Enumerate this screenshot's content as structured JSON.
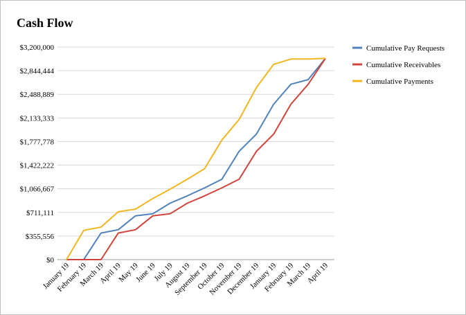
{
  "chart_data": {
    "type": "line",
    "title": "Cash Flow",
    "xlabel": "",
    "ylabel": "",
    "categories": [
      "January 19",
      "February 19",
      "March 19",
      "April 19",
      "May 19",
      "June 19",
      "July 19",
      "August 19",
      "September 19",
      "October 19",
      "November 19",
      "December 19",
      "January 19",
      "February 19",
      "March 19",
      "April 19"
    ],
    "y_ticks": [
      "$0",
      "$355,556",
      "$711,111",
      "$1,066,667",
      "$1,422,222",
      "$1,777,778",
      "$2,133,333",
      "$2,488,889",
      "$2,844,444",
      "$3,200,000"
    ],
    "ylim": [
      0,
      3200000
    ],
    "grid": true,
    "legend_position": "right",
    "series": [
      {
        "name": "Cumulative Pay Requests",
        "color": "#4f81bd",
        "values": [
          0,
          0,
          400000,
          450000,
          660000,
          690000,
          850000,
          960000,
          1080000,
          1210000,
          1630000,
          1890000,
          2340000,
          2640000,
          2710000,
          3030000
        ]
      },
      {
        "name": "Cumulative Receivables",
        "color": "#d0433a",
        "values": [
          0,
          0,
          0,
          400000,
          450000,
          660000,
          690000,
          850000,
          960000,
          1080000,
          1210000,
          1630000,
          1890000,
          2340000,
          2640000,
          3030000
        ]
      },
      {
        "name": "Cumulative Payments",
        "color": "#f2b620",
        "values": [
          0,
          440000,
          490000,
          720000,
          760000,
          920000,
          1060000,
          1210000,
          1370000,
          1800000,
          2110000,
          2590000,
          2940000,
          3020000,
          3020000,
          3030000
        ]
      }
    ]
  }
}
